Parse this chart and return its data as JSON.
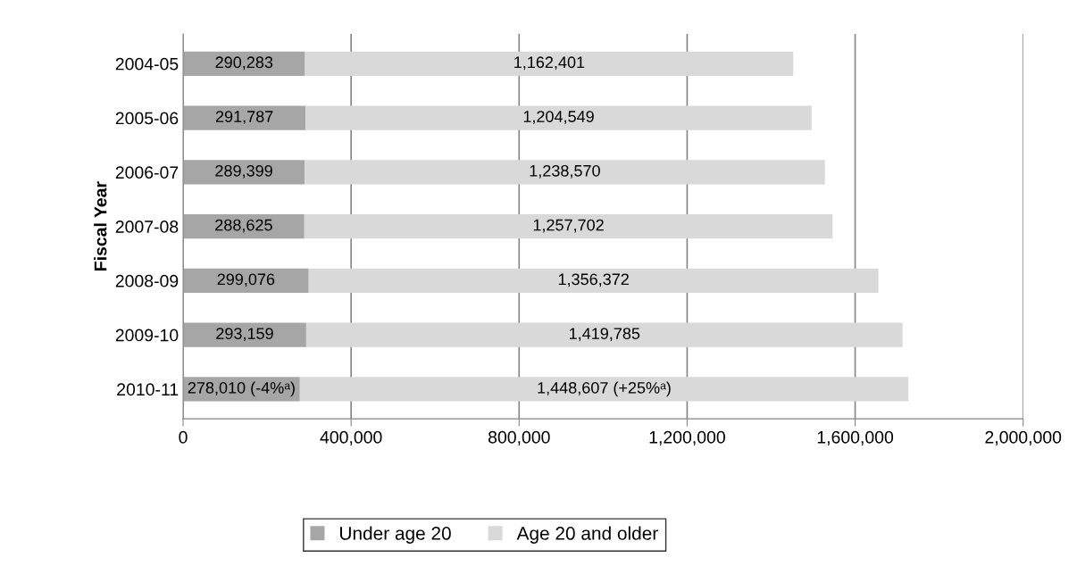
{
  "chart_data": {
    "type": "bar",
    "orientation": "horizontal",
    "stacked": true,
    "ylabel": "Fiscal Year",
    "categories": [
      "2004-05",
      "2005-06",
      "2006-07",
      "2007-08",
      "2008-09",
      "2009-10",
      "2010-11"
    ],
    "series": [
      {
        "name": "Under age 20",
        "color": "#a6a6a6",
        "values": [
          290283,
          291787,
          289399,
          288625,
          299076,
          293159,
          278010
        ],
        "value_labels": [
          "290,283",
          "291,787",
          "289,399",
          "288,625",
          "299,076",
          "293,159",
          "278,010 (-4%ᵃ)"
        ]
      },
      {
        "name": "Age 20 and older",
        "color": "#d9d9d9",
        "values": [
          1162401,
          1204549,
          1238570,
          1257702,
          1356372,
          1419785,
          1448607
        ],
        "value_labels": [
          "1,162,401",
          "1,204,549",
          "1,238,570",
          "1,257,702",
          "1,356,372",
          "1,419,785",
          "1,448,607 (+25%ᵃ)"
        ]
      }
    ],
    "xlim": [
      0,
      2000000
    ],
    "xticks": [
      {
        "value": 0,
        "label": "0"
      },
      {
        "value": 400000,
        "label": "400,000"
      },
      {
        "value": 800000,
        "label": "800,000"
      },
      {
        "value": 1200000,
        "label": "1,200,000"
      },
      {
        "value": 1600000,
        "label": "1,600,000"
      },
      {
        "value": 2000000,
        "label": "2,000,000"
      }
    ],
    "grid": "x",
    "legend": "bottom"
  }
}
